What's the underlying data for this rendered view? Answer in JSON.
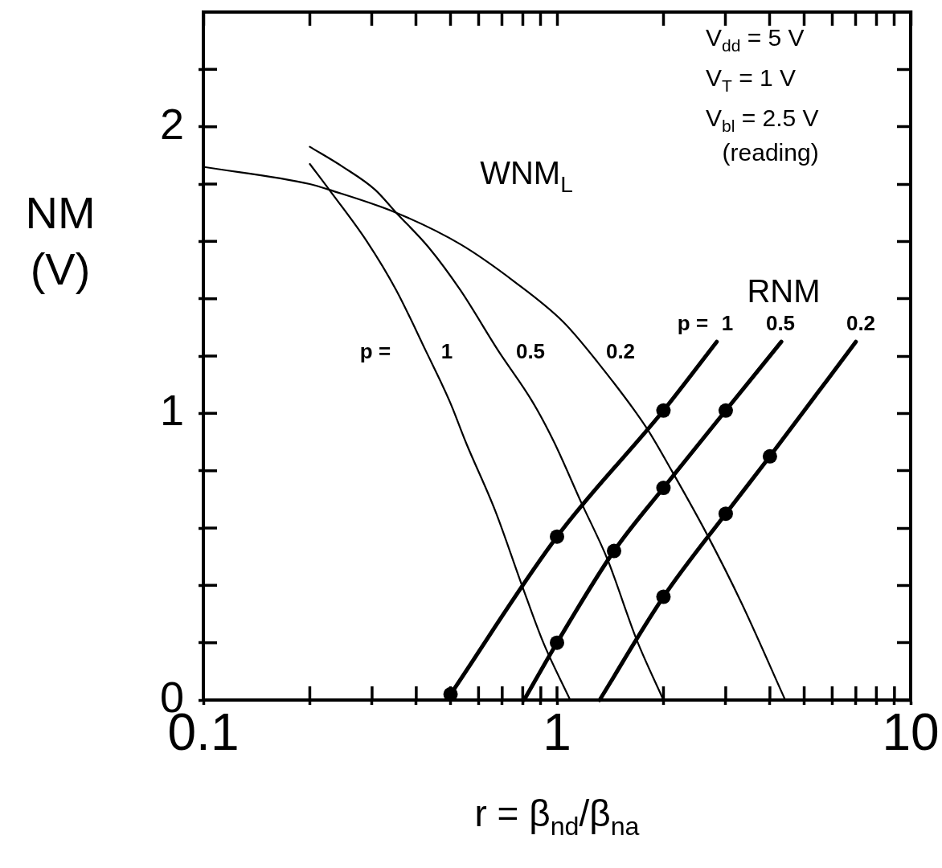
{
  "chart_data": {
    "type": "line",
    "xlabel": "r = β$_{nd}$/β$_{na}$",
    "ylabel": "NM (V)",
    "log": "x",
    "grid": false,
    "legend": false,
    "marker": "none",
    "line_style": "solid",
    "xlim": [
      0.1,
      10
    ],
    "xticks": [
      0.1,
      {
        "value": 0.2,
        "label": null
      },
      {
        "value": 0.3,
        "label": null
      },
      {
        "value": 0.4,
        "label": null
      },
      {
        "value": 0.5,
        "label": null
      },
      {
        "value": 0.6,
        "label": null
      },
      {
        "value": 0.7,
        "label": null
      },
      {
        "value": 0.8,
        "label": null
      },
      {
        "value": 0.9,
        "label": null
      },
      1,
      {
        "value": 2,
        "label": null
      },
      {
        "value": 3,
        "label": null
      },
      {
        "value": 4,
        "label": null
      },
      {
        "value": 5,
        "label": null
      },
      {
        "value": 6,
        "label": null
      },
      {
        "value": 7,
        "label": null
      },
      {
        "value": 8,
        "label": null
      },
      {
        "value": 9,
        "label": null
      },
      10
    ],
    "ylim": [
      0,
      2.4
    ],
    "yticks": [
      0,
      {
        "value": 0.2,
        "label": null
      },
      {
        "value": 0.4,
        "label": null
      },
      {
        "value": 0.6,
        "label": null
      },
      {
        "value": 0.8,
        "label": null
      },
      1,
      {
        "value": 1.2,
        "label": null
      },
      {
        "value": 1.4,
        "label": null
      },
      {
        "value": 1.6,
        "label": null
      },
      {
        "value": 1.8,
        "label": null
      },
      2,
      {
        "value": 2.2,
        "label": null
      }
    ],
    "series": [
      {
        "color": "#000000",
        "x": [
          0.2,
          0.227,
          0.29,
          0.351,
          0.425,
          0.498,
          0.552,
          0.669,
          0.796,
          0.915,
          1.09
        ],
        "values": [
          1.87,
          1.78,
          1.6,
          1.43,
          1.22,
          1.04,
          0.9,
          0.66,
          0.4,
          0.2,
          0
        ]
      },
      {
        "color": "#000000",
        "x": [
          0.2,
          0.248,
          0.306,
          0.351,
          0.433,
          0.533,
          0.681,
          0.853,
          0.981,
          1.17,
          1.39,
          1.68,
          2.0
        ],
        "values": [
          1.93,
          1.86,
          1.78,
          1.7,
          1.58,
          1.43,
          1.22,
          1.04,
          0.9,
          0.69,
          0.49,
          0.21,
          0
        ]
      },
      {
        "color": "#000000",
        "x": [
          0.1,
          0.2,
          0.227,
          0.351,
          0.533,
          0.757,
          1.04,
          1.3,
          1.79,
          2.11,
          2.65,
          3.32,
          4.42
        ],
        "values": [
          1.86,
          1.8,
          1.78,
          1.7,
          1.59,
          1.46,
          1.32,
          1.18,
          0.95,
          0.8,
          0.58,
          0.34,
          0
        ]
      },
      {
        "color": "#000000",
        "x": [
          0.5,
          1,
          2,
          2.83
        ],
        "values": [
          0.02,
          0.57,
          1.01,
          1.25
        ]
      },
      {
        "color": "#000000",
        "x": [
          0.807,
          1,
          1.45,
          2,
          3,
          4.31
        ],
        "values": [
          0,
          0.2,
          0.52,
          0.74,
          1.01,
          1.25
        ]
      },
      {
        "color": "#000000",
        "x": [
          1.32,
          2,
          3,
          4,
          7
        ],
        "values": [
          0,
          0.36,
          0.65,
          0.85,
          1.25
        ]
      },
      {
        "type": "scatter",
        "marker": "circle",
        "color": "#000000",
        "x": [
          0.5,
          1,
          2,
          1,
          1.45,
          2,
          3,
          2,
          3,
          4
        ],
        "values": [
          0.02,
          0.57,
          1.01,
          0.2,
          0.52,
          0.74,
          1.01,
          0.36,
          0.65,
          0.85
        ]
      }
    ],
    "annotations": [
      "WNM$_{L}$",
      "p =",
      "1",
      "0.5",
      "0.2",
      "RNM",
      "p =",
      "1",
      "0.5",
      "0.2",
      "V$_{dd}$ = 5 V",
      "V$_{T}$ = 1 V",
      "V$_{bl}$ = 2.5 V",
      "(reading)"
    ]
  }
}
